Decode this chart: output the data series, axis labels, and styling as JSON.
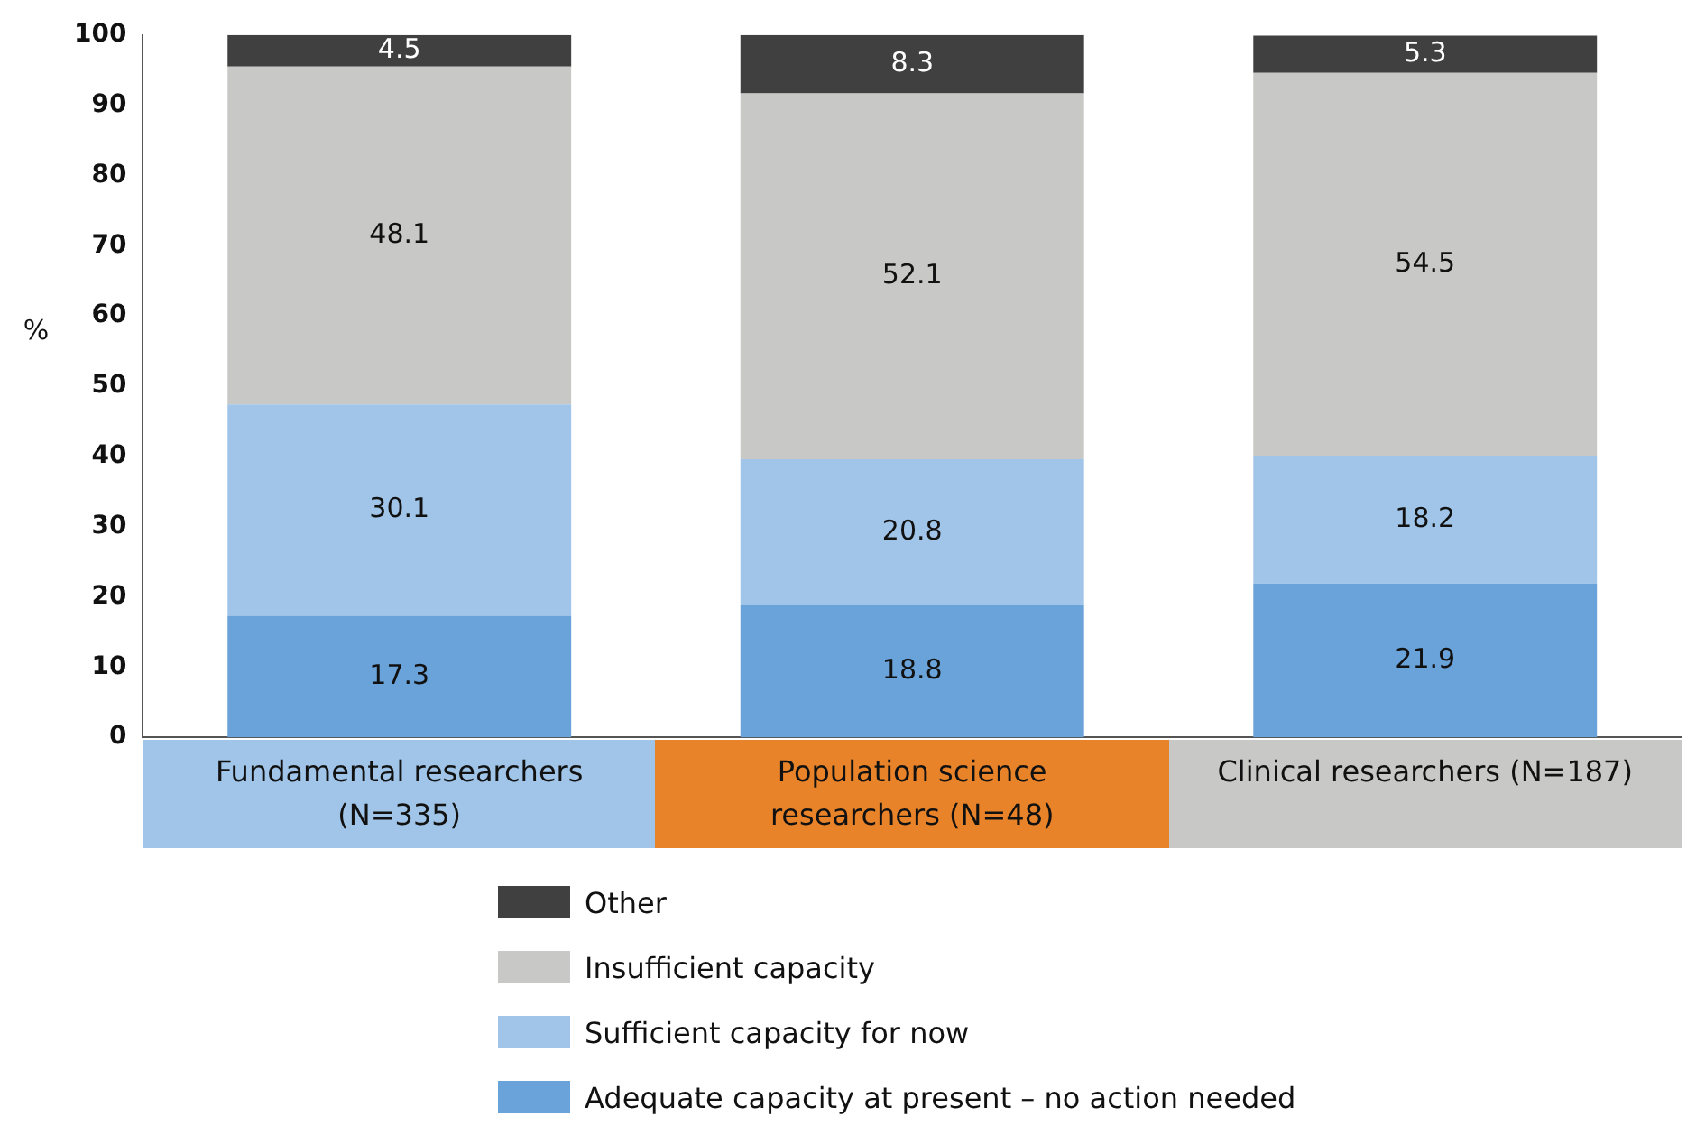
{
  "chart_data": {
    "type": "bar",
    "stacked": true,
    "ylabel": "%",
    "categories": [
      "Fundamental researchers (N=335)",
      "Population science researchers (N=48)",
      "Clinical researchers (N=187)"
    ],
    "series": [
      {
        "name": "Adequate capacity at present – no action needed",
        "color": "#6aa3d9",
        "values": [
          17.3,
          18.8,
          21.9
        ]
      },
      {
        "name": "Sufficient capacity for now",
        "color": "#a0c5e8",
        "values": [
          30.1,
          20.8,
          18.2
        ]
      },
      {
        "name": "Insufficient capacity",
        "color": "#c8c8c6",
        "values": [
          48.1,
          52.1,
          54.5
        ]
      },
      {
        "name": "Other",
        "color": "#404040",
        "values": [
          4.5,
          8.3,
          5.3
        ]
      }
    ],
    "ylim": [
      0,
      100
    ],
    "yticks": [
      0,
      10,
      20,
      30,
      40,
      50,
      60,
      70,
      80,
      90,
      100
    ],
    "grid": false,
    "legend": "bottom",
    "data_labels": true
  }
}
